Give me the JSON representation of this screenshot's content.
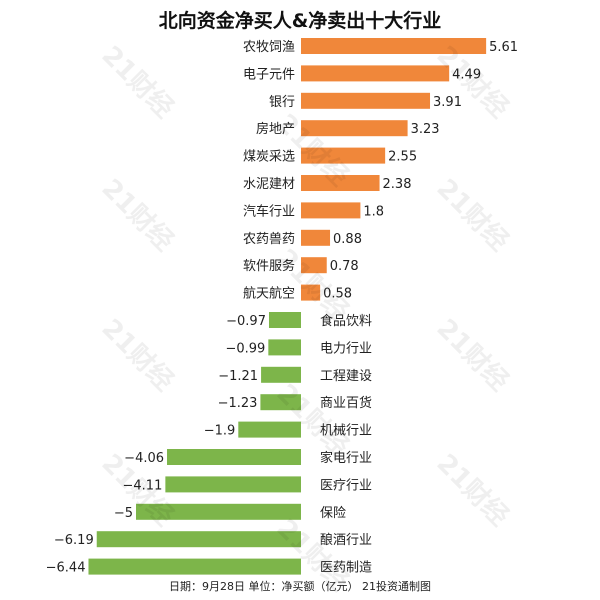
{
  "title": "北向资金净买人&净卖出十大行业",
  "footer": "日期：9月28日  单位：净买额（亿元）  21投资通制图",
  "watermark": "21财经",
  "colors": {
    "positive": "#F0873A",
    "negative": "#7DB54A"
  },
  "chart_data": {
    "type": "bar",
    "orientation": "horizontal",
    "title": "北向资金净买人&净卖出十大行业",
    "unit": "亿元",
    "xlim": [
      -6.44,
      5.61
    ],
    "categories": [
      "农牧饲渔",
      "电子元件",
      "银行",
      "房地产",
      "煤炭采选",
      "水泥建材",
      "汽车行业",
      "农药兽药",
      "软件服务",
      "航天航空",
      "食品饮料",
      "电力行业",
      "工程建设",
      "商业百货",
      "机械行业",
      "家电行业",
      "医疗行业",
      "保险",
      "酿酒行业",
      "医药制造"
    ],
    "values": [
      5.61,
      4.49,
      3.91,
      3.23,
      2.55,
      2.38,
      1.8,
      0.88,
      0.78,
      0.58,
      -0.97,
      -0.99,
      -1.21,
      -1.23,
      -1.9,
      -4.06,
      -4.11,
      -5,
      -6.19,
      -6.44
    ],
    "value_labels": [
      "5.61",
      "4.49",
      "3.91",
      "3.23",
      "2.55",
      "2.38",
      "1.8",
      "0.88",
      "0.78",
      "0.58",
      "−0.97",
      "−0.99",
      "−1.21",
      "−1.23",
      "−1.9",
      "−4.06",
      "−4.11",
      "−5",
      "−6.19",
      "−6.44"
    ]
  }
}
